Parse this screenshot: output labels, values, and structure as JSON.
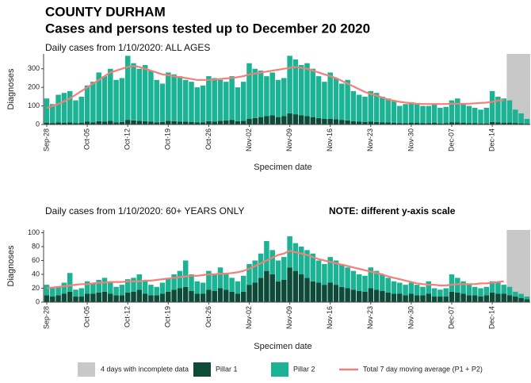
{
  "header": {
    "title": "COUNTY DURHAM",
    "subtitle": "Cases and persons tested up to December 20 2020"
  },
  "shade": {
    "label": "4 days with incomplete data",
    "color": "#c8c8c8",
    "days": 4
  },
  "chart_data": [
    {
      "type": "bar",
      "title": "Daily cases from 1/10/2020: ALL AGES",
      "y_label": "Diagnoses",
      "x_label": "Specimen date",
      "categories": [
        "Sep-28",
        null,
        null,
        null,
        null,
        null,
        null,
        "Oct-05",
        null,
        null,
        null,
        null,
        null,
        null,
        "Oct-12",
        null,
        null,
        null,
        null,
        null,
        null,
        "Oct-19",
        null,
        null,
        null,
        null,
        null,
        null,
        "Oct-26",
        null,
        null,
        null,
        null,
        null,
        null,
        "Nov-02",
        null,
        null,
        null,
        null,
        null,
        null,
        "Nov-09",
        null,
        null,
        null,
        null,
        null,
        null,
        "Nov-16",
        null,
        null,
        null,
        null,
        null,
        null,
        "Nov-23",
        null,
        null,
        null,
        null,
        null,
        null,
        "Nov-30",
        null,
        null,
        null,
        null,
        null,
        null,
        "Dec-07",
        null,
        null,
        null,
        null,
        null,
        null,
        "Dec-14",
        null,
        null,
        null,
        null,
        null,
        null
      ],
      "ylim": [
        0,
        380
      ],
      "yticks": [
        0,
        100,
        200,
        300
      ],
      "series": [
        {
          "name": "Pillar 1",
          "kind": "bar",
          "color": "#0e4a38",
          "values": [
            10,
            8,
            12,
            10,
            12,
            8,
            10,
            15,
            12,
            18,
            15,
            20,
            12,
            14,
            25,
            22,
            20,
            18,
            16,
            12,
            14,
            20,
            18,
            16,
            15,
            14,
            12,
            12,
            18,
            16,
            20,
            22,
            25,
            18,
            20,
            30,
            35,
            40,
            45,
            50,
            40,
            45,
            60,
            55,
            50,
            45,
            40,
            35,
            30,
            30,
            28,
            25,
            22,
            18,
            15,
            14,
            15,
            14,
            12,
            12,
            10,
            8,
            8,
            10,
            10,
            8,
            8,
            10,
            6,
            8,
            12,
            12,
            10,
            8,
            8,
            6,
            6,
            14,
            12,
            10,
            10,
            8,
            6,
            4
          ]
        },
        {
          "name": "Pillar 2",
          "kind": "bar",
          "color": "#1bb394",
          "values": [
            130,
            102,
            148,
            160,
            168,
            122,
            140,
            195,
            218,
            262,
            245,
            280,
            228,
            236,
            345,
            308,
            280,
            302,
            274,
            228,
            206,
            260,
            252,
            244,
            225,
            216,
            188,
            198,
            242,
            234,
            220,
            208,
            235,
            182,
            210,
            300,
            265,
            250,
            215,
            230,
            200,
            205,
            310,
            295,
            270,
            285,
            260,
            225,
            200,
            250,
            222,
            195,
            218,
            162,
            145,
            136,
            165,
            156,
            138,
            128,
            120,
            92,
            102,
            110,
            100,
            92,
            92,
            100,
            84,
            87,
            118,
            128,
            100,
            92,
            82,
            74,
            84,
            166,
            138,
            130,
            120,
            72,
            54,
            26
          ]
        },
        {
          "name": "Total 7 day moving average (P1 + P2)",
          "kind": "line",
          "color": "#f2807a",
          "values": [
            90,
            100,
            110,
            125,
            140,
            160,
            180,
            200,
            220,
            240,
            260,
            280,
            290,
            300,
            310,
            315,
            310,
            300,
            290,
            280,
            270,
            265,
            260,
            255,
            250,
            245,
            240,
            240,
            240,
            242,
            245,
            248,
            250,
            255,
            260,
            270,
            275,
            280,
            285,
            290,
            295,
            300,
            305,
            310,
            305,
            300,
            290,
            280,
            270,
            260,
            250,
            235,
            220,
            205,
            190,
            175,
            165,
            155,
            145,
            135,
            128,
            122,
            118,
            115,
            112,
            110,
            110,
            110,
            110,
            110,
            112,
            112,
            112,
            112,
            114,
            116,
            118,
            122,
            128,
            132,
            null,
            null,
            null,
            null
          ]
        }
      ]
    },
    {
      "type": "bar",
      "title": "Daily cases from 1/10/2020: 60+ YEARS ONLY",
      "note": "NOTE: different y-axis scale",
      "y_label": "Diagnoses",
      "x_label": "Specimen date",
      "categories": [
        "Sep-28",
        null,
        null,
        null,
        null,
        null,
        null,
        "Oct-05",
        null,
        null,
        null,
        null,
        null,
        null,
        "Oct-12",
        null,
        null,
        null,
        null,
        null,
        null,
        "Oct-19",
        null,
        null,
        null,
        null,
        null,
        null,
        "Oct-26",
        null,
        null,
        null,
        null,
        null,
        null,
        "Nov-02",
        null,
        null,
        null,
        null,
        null,
        null,
        "Nov-09",
        null,
        null,
        null,
        null,
        null,
        null,
        "Nov-16",
        null,
        null,
        null,
        null,
        null,
        null,
        "Nov-23",
        null,
        null,
        null,
        null,
        null,
        null,
        "Nov-30",
        null,
        null,
        null,
        null,
        null,
        null,
        "Dec-07",
        null,
        null,
        null,
        null,
        null,
        null,
        "Dec-14",
        null,
        null,
        null,
        null,
        null,
        null
      ],
      "ylim": [
        0,
        104
      ],
      "yticks": [
        0,
        20,
        40,
        60,
        80,
        100
      ],
      "series": [
        {
          "kind": "bar",
          "color": "#0e4a38",
          "values": [
            10,
            8,
            10,
            12,
            15,
            8,
            8,
            12,
            12,
            14,
            15,
            12,
            10,
            10,
            14,
            15,
            18,
            12,
            10,
            10,
            12,
            15,
            18,
            20,
            22,
            16,
            12,
            12,
            18,
            16,
            20,
            18,
            15,
            12,
            15,
            25,
            28,
            35,
            45,
            40,
            30,
            32,
            50,
            45,
            40,
            35,
            30,
            28,
            25,
            28,
            25,
            22,
            20,
            18,
            16,
            15,
            20,
            18,
            16,
            14,
            12,
            12,
            10,
            12,
            10,
            10,
            12,
            8,
            8,
            8,
            15,
            14,
            12,
            10,
            10,
            8,
            10,
            14,
            12,
            12,
            10,
            8,
            6,
            4
          ]
        },
        {
          "kind": "bar",
          "color": "#1bb394",
          "values": [
            15,
            12,
            12,
            16,
            27,
            10,
            12,
            18,
            16,
            18,
            20,
            18,
            12,
            15,
            19,
            20,
            22,
            18,
            15,
            12,
            16,
            20,
            22,
            25,
            38,
            24,
            18,
            16,
            27,
            24,
            30,
            24,
            20,
            18,
            23,
            30,
            32,
            35,
            43,
            35,
            30,
            33,
            45,
            40,
            40,
            40,
            40,
            32,
            30,
            37,
            35,
            33,
            30,
            27,
            24,
            23,
            30,
            27,
            24,
            21,
            18,
            16,
            15,
            16,
            15,
            12,
            18,
            12,
            10,
            12,
            25,
            21,
            18,
            15,
            12,
            12,
            12,
            16,
            16,
            13,
            12,
            7,
            6,
            4
          ]
        },
        {
          "kind": "line",
          "color": "#f2807a",
          "values": [
            20,
            21,
            22,
            23,
            24,
            25,
            26,
            26,
            27,
            28,
            28,
            29,
            29,
            29,
            30,
            30,
            30,
            31,
            31,
            32,
            33,
            34,
            35,
            36,
            37,
            38,
            38,
            39,
            40,
            40,
            41,
            41,
            42,
            43,
            45,
            48,
            52,
            56,
            60,
            64,
            68,
            70,
            74,
            72,
            70,
            68,
            65,
            62,
            60,
            58,
            56,
            54,
            52,
            50,
            48,
            46,
            44,
            42,
            40,
            37,
            35,
            33,
            31,
            29,
            27,
            26,
            25,
            25,
            24,
            24,
            25,
            26,
            26,
            26,
            26,
            27,
            27,
            28,
            29,
            30,
            null,
            null,
            null,
            null
          ]
        }
      ]
    }
  ]
}
